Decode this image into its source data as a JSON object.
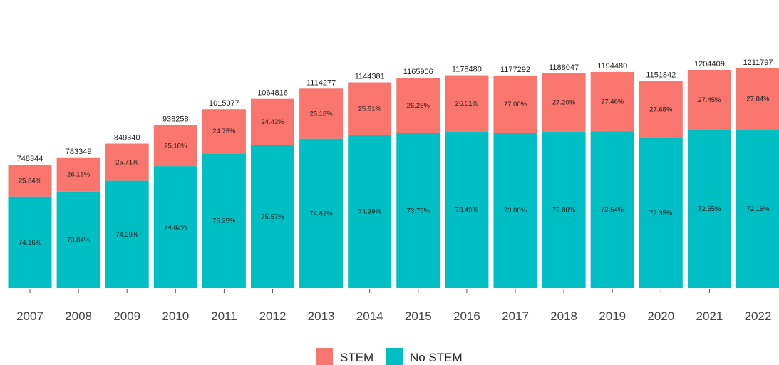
{
  "chart_data": {
    "type": "bar",
    "stacked": true,
    "normalized": true,
    "categories": [
      "2007",
      "2008",
      "2009",
      "2010",
      "2011",
      "2012",
      "2013",
      "2014",
      "2015",
      "2016",
      "2017",
      "2018",
      "2019",
      "2020",
      "2021",
      "2022"
    ],
    "totals": [
      748344,
      783349,
      849340,
      938258,
      1015077,
      1064816,
      1114277,
      1144381,
      1165906,
      1178480,
      1177292,
      1188047,
      1194480,
      1151842,
      1204409,
      1211797
    ],
    "series": [
      {
        "name": "No STEM",
        "color": "#00BFC4",
        "values": [
          74.16,
          73.84,
          74.29,
          74.82,
          75.25,
          75.57,
          74.82,
          74.39,
          73.75,
          73.49,
          73.0,
          72.8,
          72.54,
          72.35,
          72.55,
          72.16
        ],
        "labels": [
          "74.16%",
          "73.84%",
          "74.29%",
          "74.82%",
          "75.25%",
          "75.57%",
          "74.82%",
          "74.39%",
          "73.75%",
          "73.49%",
          "73.00%",
          "72.80%",
          "72.54%",
          "72.35%",
          "72.55%",
          "72.16%"
        ]
      },
      {
        "name": "STEM",
        "color": "#F8766D",
        "values": [
          25.84,
          26.16,
          25.71,
          25.18,
          24.75,
          24.43,
          25.18,
          25.61,
          26.25,
          26.51,
          27.0,
          27.2,
          27.46,
          27.65,
          27.45,
          27.84
        ],
        "labels": [
          "25.84%",
          "26.16%",
          "25.71%",
          "25.18%",
          "24.75%",
          "24.43%",
          "25.18%",
          "25.61%",
          "26.25%",
          "26.51%",
          "27.00%",
          "27.20%",
          "27.46%",
          "27.65%",
          "27.45%",
          "27.84%"
        ]
      }
    ],
    "legend": {
      "position": "bottom",
      "entries": [
        "STEM",
        "No STEM"
      ]
    },
    "title": "",
    "xlabel": "",
    "ylabel": "",
    "y_axis_visible": false,
    "grid": false
  }
}
